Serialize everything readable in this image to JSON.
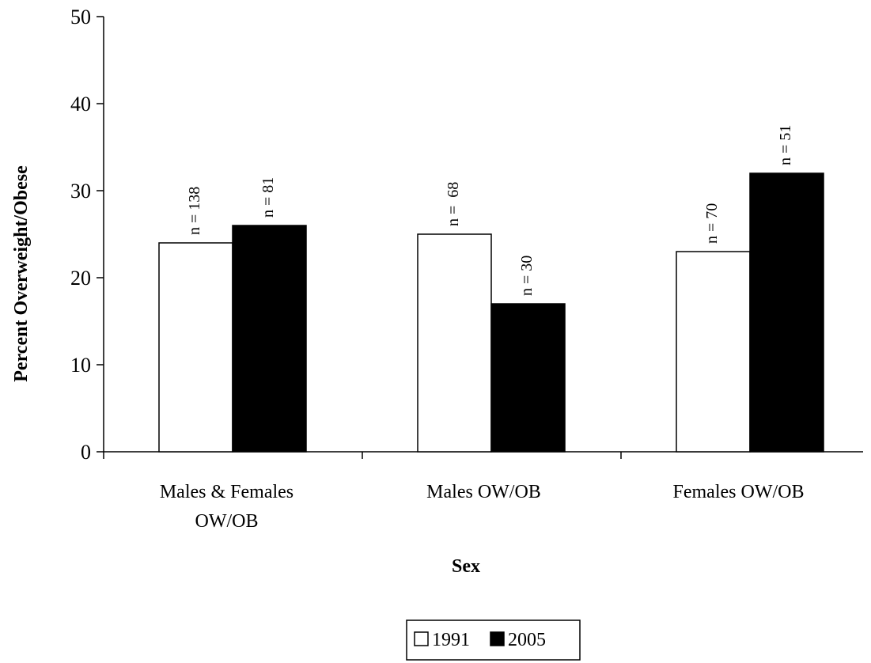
{
  "chart_data": {
    "type": "bar",
    "categories": [
      [
        "Males & Females",
        "OW/OB"
      ],
      [
        "Males OW/OB"
      ],
      [
        "Females OW/OB"
      ]
    ],
    "series": [
      {
        "name": "1991",
        "color": "#ffffff",
        "values": [
          24,
          25,
          23
        ],
        "labels": [
          "n = 138",
          "n =  68",
          "n = 70"
        ]
      },
      {
        "name": "2005",
        "color": "#000000",
        "values": [
          26,
          17,
          32
        ],
        "labels": [
          "n = 81",
          "n = 30",
          "n = 51"
        ]
      }
    ],
    "xlabel": "Sex",
    "ylabel": "Percent Overweight/Obese",
    "ylim": [
      0,
      50
    ],
    "yticks": [
      0,
      10,
      20,
      30,
      40,
      50
    ],
    "grid": false,
    "legend_position": "bottom-center"
  }
}
